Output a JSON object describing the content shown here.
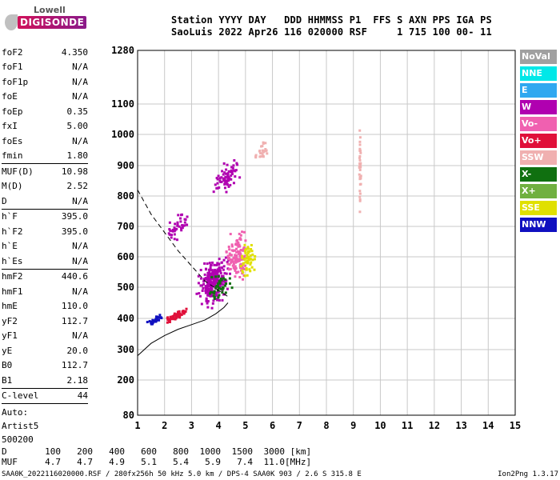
{
  "logo": {
    "top": "Lowell",
    "main": "DIGISONDE"
  },
  "header": {
    "line1": "Station YYYY DAY   DDD HHMMSS P1  FFS S AXN PPS IGA PS",
    "line2": "SaoLuis 2022 Apr26 116 020000 RSF     1 715 100 00- 11"
  },
  "params": [
    {
      "label": "foF2",
      "value": "4.350"
    },
    {
      "label": "foF1",
      "value": "N/A"
    },
    {
      "label": "foF1p",
      "value": "N/A"
    },
    {
      "label": "foE",
      "value": "N/A"
    },
    {
      "label": "foEp",
      "value": "0.35"
    },
    {
      "label": "fxI",
      "value": "5.00"
    },
    {
      "label": "foEs",
      "value": "N/A"
    },
    {
      "label": "fmin",
      "value": "1.80"
    },
    {
      "label": "MUF(D)",
      "value": "10.98",
      "sep": true
    },
    {
      "label": "M(D)",
      "value": "2.52"
    },
    {
      "label": "D",
      "value": "N/A"
    },
    {
      "label": "h`F",
      "value": "395.0",
      "sep": true
    },
    {
      "label": "h`F2",
      "value": "395.0"
    },
    {
      "label": "h`E",
      "value": "N/A"
    },
    {
      "label": "h`Es",
      "value": "N/A"
    },
    {
      "label": "hmF2",
      "value": "440.6",
      "sep": true
    },
    {
      "label": "hmF1",
      "value": "N/A"
    },
    {
      "label": "hmE",
      "value": "110.0"
    },
    {
      "label": "yF2",
      "value": "112.7"
    },
    {
      "label": "yF1",
      "value": "N/A"
    },
    {
      "label": "yE",
      "value": "20.0"
    },
    {
      "label": "B0",
      "value": "112.7"
    },
    {
      "label": "B1",
      "value": "2.18"
    },
    {
      "label": "C-level",
      "value": "44",
      "sep": true
    }
  ],
  "autoscale": {
    "line1": "Auto:",
    "line2": "Artist5",
    "line3": "500200"
  },
  "footer": {
    "d_label": "D",
    "d_values": [
      "100",
      "200",
      "400",
      "600",
      "800",
      "1000",
      "1500",
      "3000",
      "[km]"
    ],
    "muf_label": "MUF",
    "muf_values": [
      "4.7",
      "4.7",
      "4.9",
      "5.1",
      "5.4",
      "5.9",
      "7.4",
      "11.0",
      "[MHz]"
    ],
    "file_info": "SAA0K_2022116020000.RSF / 280fx256h 50 kHz 5.0 km / DPS-4 SAA0K 903 / 2.6 S 315.8 E",
    "version": "Ion2Png 1.3.17"
  },
  "legend": [
    {
      "label": "NoVal",
      "color": "#a0a0a0"
    },
    {
      "label": "NNE",
      "color": "#00e8e8"
    },
    {
      "label": "E",
      "color": "#30a8f0"
    },
    {
      "label": "W",
      "color": "#b000b0"
    },
    {
      "label": "Vo-",
      "color": "#f060b0"
    },
    {
      "label": "Vo+",
      "color": "#e0103a"
    },
    {
      "label": "SSW",
      "color": "#f0b0b0"
    },
    {
      "label": "X-",
      "color": "#107010"
    },
    {
      "label": "X+",
      "color": "#70b040"
    },
    {
      "label": "SSE",
      "color": "#e0e000"
    },
    {
      "label": "NNW",
      "color": "#1010c0"
    }
  ],
  "chart_data": {
    "type": "scatter",
    "x_ticks": [
      1,
      2,
      3,
      4,
      5,
      6,
      7,
      8,
      9,
      10,
      11,
      12,
      13,
      14,
      15
    ],
    "y_ticks": [
      80,
      200,
      300,
      400,
      500,
      600,
      700,
      800,
      900,
      1000,
      1100,
      1280
    ],
    "xlim": [
      1,
      15
    ],
    "ylim": [
      80,
      1280
    ],
    "grid": true,
    "profile_curve": [
      [
        1.0,
        280
      ],
      [
        1.5,
        320
      ],
      [
        2.0,
        345
      ],
      [
        2.5,
        365
      ],
      [
        3.0,
        380
      ],
      [
        3.5,
        395
      ],
      [
        3.9,
        415
      ],
      [
        4.2,
        435
      ],
      [
        4.35,
        450
      ]
    ],
    "muf_dashed_curve": [
      [
        1.0,
        820
      ],
      [
        1.5,
        740
      ],
      [
        2.0,
        680
      ],
      [
        2.5,
        620
      ],
      [
        3.0,
        570
      ],
      [
        3.5,
        520
      ],
      [
        4.0,
        490
      ],
      [
        4.35,
        470
      ]
    ],
    "trace_clusters": [
      {
        "color": "#b000b0",
        "center": [
          3.8,
          520
        ],
        "spread": [
          0.7,
          90
        ],
        "n": 260
      },
      {
        "color": "#f060b0",
        "center": [
          4.7,
          600
        ],
        "spread": [
          0.5,
          100
        ],
        "n": 120
      },
      {
        "color": "#e0103a",
        "center": [
          2.4,
          405
        ],
        "spread": [
          0.6,
          15
        ],
        "n": 60
      },
      {
        "color": "#107010",
        "center": [
          4.0,
          500
        ],
        "spread": [
          0.6,
          60
        ],
        "n": 40
      },
      {
        "color": "#e0e000",
        "center": [
          5.1,
          590
        ],
        "spread": [
          0.4,
          80
        ],
        "n": 50
      },
      {
        "color": "#1010c0",
        "center": [
          1.7,
          395
        ],
        "spread": [
          0.4,
          15
        ],
        "n": 30
      },
      {
        "color": "#b000b0",
        "center": [
          4.3,
          860
        ],
        "spread": [
          0.6,
          60
        ],
        "n": 70
      },
      {
        "color": "#b000b0",
        "center": [
          2.5,
          700
        ],
        "spread": [
          0.5,
          50
        ],
        "n": 40
      },
      {
        "color": "#f0b0b0",
        "center": [
          5.6,
          950
        ],
        "spread": [
          0.3,
          40
        ],
        "n": 25
      },
      {
        "color": "#f0b0b0",
        "center": [
          9.25,
          900
        ],
        "spread": [
          0.04,
          180
        ],
        "n": 35
      }
    ]
  }
}
